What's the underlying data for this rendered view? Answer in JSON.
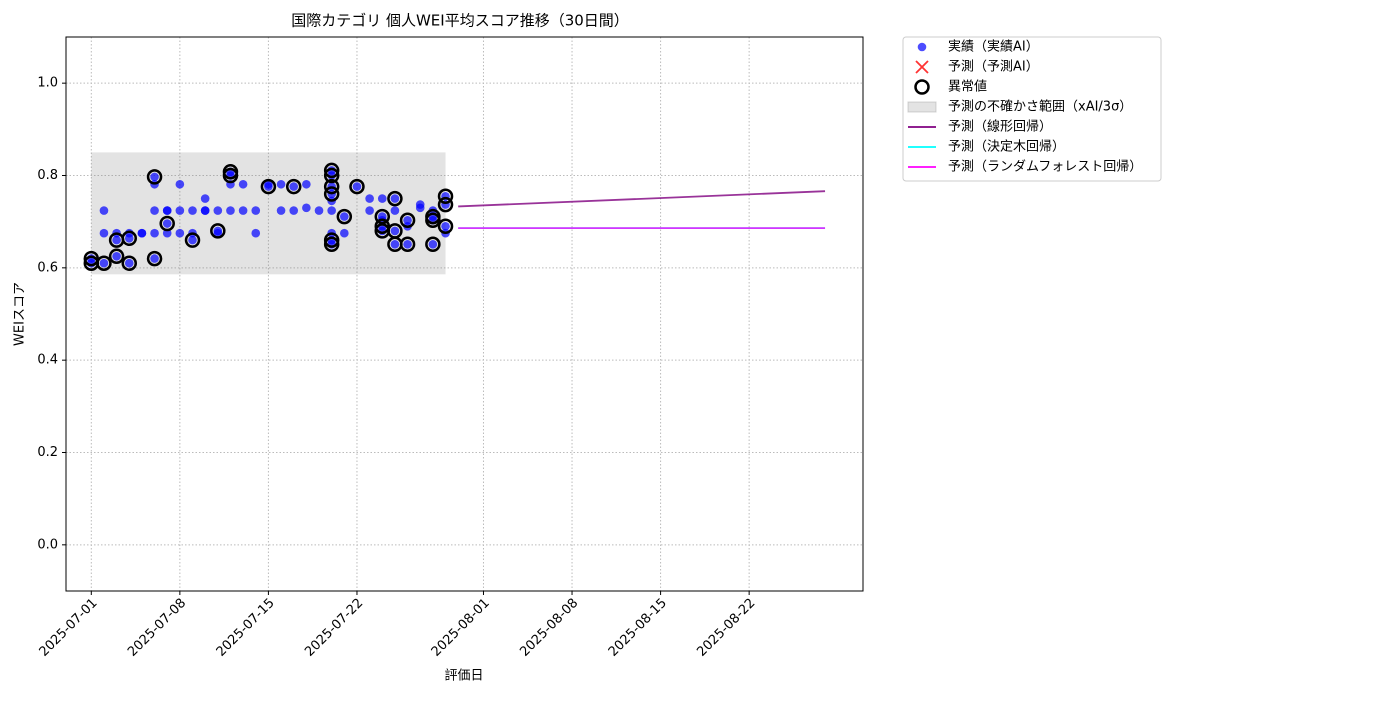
{
  "chart_data": {
    "type": "scatter",
    "title": "国際カテゴリ 個人WEI平均スコア推移（30日間）",
    "xlabel": "評価日",
    "ylabel": "WEIスコア",
    "xlim": [
      "2025-06-29",
      "2025-08-31"
    ],
    "ylim": [
      -0.1,
      1.1
    ],
    "xticks": [
      "2025-07-01",
      "2025-07-08",
      "2025-07-15",
      "2025-07-22",
      "2025-08-01",
      "2025-08-08",
      "2025-08-15",
      "2025-08-22"
    ],
    "yticks": [
      {
        "value": 0,
        "label": "0.0"
      },
      0.2,
      0.4,
      0.6,
      0.8,
      {
        "value": 1,
        "label": "1.0"
      }
    ],
    "grid": true,
    "legend": "outside-upper-right",
    "series": [
      {
        "name": "実績（実績AI）",
        "type": "scatter",
        "marker": "o",
        "color": "#0000ff",
        "x": [
          "2025-07-01",
          "2025-07-01",
          "2025-07-02",
          "2025-07-02",
          "2025-07-02",
          "2025-07-03",
          "2025-07-03",
          "2025-07-03",
          "2025-07-04",
          "2025-07-04",
          "2025-07-04",
          "2025-07-05",
          "2025-07-05",
          "2025-07-06",
          "2025-07-06",
          "2025-07-06",
          "2025-07-06",
          "2025-07-06",
          "2025-07-07",
          "2025-07-07",
          "2025-07-07",
          "2025-07-07",
          "2025-07-08",
          "2025-07-08",
          "2025-07-08",
          "2025-07-09",
          "2025-07-09",
          "2025-07-09",
          "2025-07-10",
          "2025-07-10",
          "2025-07-10",
          "2025-07-11",
          "2025-07-11",
          "2025-07-11",
          "2025-07-12",
          "2025-07-12",
          "2025-07-12",
          "2025-07-12",
          "2025-07-13",
          "2025-07-13",
          "2025-07-14",
          "2025-07-14",
          "2025-07-15",
          "2025-07-15",
          "2025-07-16",
          "2025-07-16",
          "2025-07-17",
          "2025-07-17",
          "2025-07-18",
          "2025-07-18",
          "2025-07-19",
          "2025-07-20",
          "2025-07-20",
          "2025-07-20",
          "2025-07-20",
          "2025-07-20",
          "2025-07-20",
          "2025-07-20",
          "2025-07-20",
          "2025-07-20",
          "2025-07-21",
          "2025-07-21",
          "2025-07-22",
          "2025-07-23",
          "2025-07-23",
          "2025-07-24",
          "2025-07-24",
          "2025-07-24",
          "2025-07-24",
          "2025-07-24",
          "2025-07-25",
          "2025-07-25",
          "2025-07-25",
          "2025-07-25",
          "2025-07-26",
          "2025-07-26",
          "2025-07-26",
          "2025-07-27",
          "2025-07-27",
          "2025-07-28",
          "2025-07-28",
          "2025-07-28",
          "2025-07-28",
          "2025-07-29",
          "2025-07-29",
          "2025-07-29",
          "2025-07-29"
        ],
        "values": [
          0.62,
          0.61,
          0.61,
          0.724,
          0.675,
          0.66,
          0.675,
          0.625,
          0.664,
          0.61,
          0.675,
          0.675,
          0.675,
          0.675,
          0.62,
          0.724,
          0.781,
          0.797,
          0.724,
          0.696,
          0.675,
          0.724,
          0.675,
          0.781,
          0.724,
          0.66,
          0.675,
          0.724,
          0.724,
          0.75,
          0.724,
          0.724,
          0.675,
          0.68,
          0.8,
          0.808,
          0.781,
          0.724,
          0.781,
          0.724,
          0.675,
          0.724,
          0.776,
          0.781,
          0.724,
          0.781,
          0.776,
          0.724,
          0.73,
          0.781,
          0.724,
          0.811,
          0.8,
          0.76,
          0.745,
          0.724,
          0.675,
          0.66,
          0.651,
          0.776,
          0.711,
          0.675,
          0.776,
          0.724,
          0.75,
          0.711,
          0.75,
          0.69,
          0.68,
          0.703,
          0.651,
          0.75,
          0.68,
          0.724,
          0.703,
          0.651,
          0.69,
          0.73,
          0.737,
          0.703,
          0.711,
          0.651,
          0.724,
          0.755,
          0.737,
          0.69,
          0.675
        ]
      },
      {
        "name": "予測（予測AI）",
        "type": "scatter",
        "marker": "x",
        "color": "#ff0000",
        "x": [],
        "values": []
      },
      {
        "name": "異常値",
        "type": "scatter",
        "marker": "ring",
        "color": "#000000",
        "x": [
          "2025-07-01",
          "2025-07-01",
          "2025-07-02",
          "2025-07-03",
          "2025-07-03",
          "2025-07-04",
          "2025-07-04",
          "2025-07-06",
          "2025-07-06",
          "2025-07-07",
          "2025-07-09",
          "2025-07-11",
          "2025-07-12",
          "2025-07-12",
          "2025-07-15",
          "2025-07-17",
          "2025-07-20",
          "2025-07-20",
          "2025-07-20",
          "2025-07-20",
          "2025-07-20",
          "2025-07-20",
          "2025-07-21",
          "2025-07-22",
          "2025-07-24",
          "2025-07-24",
          "2025-07-24",
          "2025-07-25",
          "2025-07-25",
          "2025-07-25",
          "2025-07-26",
          "2025-07-26",
          "2025-07-28",
          "2025-07-28",
          "2025-07-28",
          "2025-07-29",
          "2025-07-29",
          "2025-07-29"
        ],
        "values": [
          0.62,
          0.61,
          0.61,
          0.66,
          0.625,
          0.664,
          0.61,
          0.62,
          0.797,
          0.696,
          0.66,
          0.68,
          0.8,
          0.808,
          0.776,
          0.776,
          0.811,
          0.8,
          0.76,
          0.776,
          0.66,
          0.651,
          0.711,
          0.776,
          0.711,
          0.69,
          0.68,
          0.651,
          0.75,
          0.68,
          0.703,
          0.651,
          0.703,
          0.711,
          0.651,
          0.755,
          0.737,
          0.69
        ]
      },
      {
        "name": "予測の不確かさ範囲（xAI/3σ）",
        "type": "band",
        "color": "#808080",
        "x": [
          "2025-07-01",
          "2025-07-29"
        ],
        "low": [
          0.586,
          0.586
        ],
        "high": [
          0.85,
          0.85
        ]
      },
      {
        "name": "予測（線形回帰）",
        "type": "line",
        "color": "#800080",
        "x": [
          "2025-07-30",
          "2025-08-28"
        ],
        "values": [
          0.733,
          0.766
        ]
      },
      {
        "name": "予測（決定木回帰）",
        "type": "line",
        "color": "#00ffff",
        "x": [
          "2025-07-30",
          "2025-08-28"
        ],
        "values": [
          0.686,
          0.686
        ]
      },
      {
        "name": "予測（ランダムフォレスト回帰）",
        "type": "line",
        "color": "#ff00ff",
        "x": [
          "2025-07-30",
          "2025-08-28"
        ],
        "values": [
          0.686,
          0.686
        ]
      }
    ]
  }
}
